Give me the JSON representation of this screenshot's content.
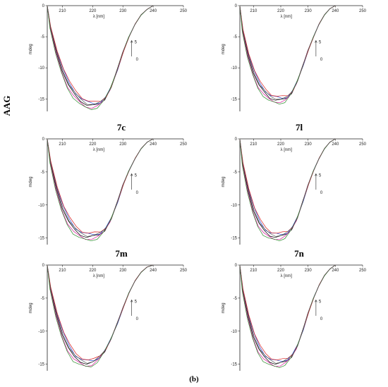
{
  "side_label": "AAG",
  "figure_label": "(b)",
  "series_colors": [
    "#000000",
    "#1f3fd1",
    "#d8199a",
    "#d92020",
    "#2a8a2a",
    "#555555"
  ],
  "chart_data": [
    {
      "type": "line",
      "panel_label": "7c",
      "xlabel": "λ [nm]",
      "ylabel": "mdeg",
      "xlim": [
        205,
        250
      ],
      "ylim": [
        -17,
        0
      ],
      "xticks": [
        210,
        220,
        230,
        240,
        250
      ],
      "yticks": [
        0,
        -5,
        -10,
        -15
      ],
      "annotation": {
        "top": "5",
        "bottom": "0"
      },
      "x": [
        205,
        206,
        208,
        210,
        212,
        214,
        216,
        218,
        220,
        222,
        224,
        226,
        228,
        230,
        232,
        234,
        236,
        238,
        240
      ],
      "y": [
        0,
        -3.5,
        -7.5,
        -10.5,
        -12.8,
        -14.3,
        -15.3,
        -15.9,
        -16.1,
        -15.9,
        -15.0,
        -13.2,
        -10.5,
        -7.5,
        -5.0,
        -3.0,
        -1.5,
        -0.6,
        0
      ]
    },
    {
      "type": "line",
      "panel_label": "7l",
      "xlabel": "λ [nm]",
      "ylabel": "mdeg",
      "xlim": [
        205,
        250
      ],
      "ylim": [
        -17,
        0
      ],
      "xticks": [
        210,
        220,
        230,
        240,
        250
      ],
      "yticks": [
        0,
        -5,
        -10,
        -15
      ],
      "annotation": {
        "top": "5",
        "bottom": "0"
      },
      "x": [
        205,
        206,
        208,
        210,
        212,
        214,
        216,
        218,
        220,
        222,
        224,
        226,
        228,
        230,
        232,
        234,
        236,
        238,
        240
      ],
      "y": [
        0,
        -4.0,
        -8.0,
        -10.8,
        -12.8,
        -14.0,
        -14.8,
        -15.1,
        -15.2,
        -15.0,
        -14.0,
        -12.2,
        -9.8,
        -7.2,
        -5.0,
        -3.0,
        -1.5,
        -0.5,
        0
      ]
    },
    {
      "type": "line",
      "panel_label": "7m",
      "xlabel": "λ [nm]",
      "ylabel": "mdeg",
      "xlim": [
        205,
        250
      ],
      "ylim": [
        -16,
        0
      ],
      "xticks": [
        210,
        220,
        230,
        240,
        250
      ],
      "yticks": [
        0,
        -5,
        -10,
        -15
      ],
      "annotation": {
        "top": "5",
        "bottom": "0"
      },
      "x": [
        205,
        206,
        208,
        210,
        212,
        214,
        216,
        218,
        220,
        222,
        224,
        226,
        228,
        230,
        232,
        234,
        236,
        238,
        240
      ],
      "y": [
        0,
        -3.5,
        -7.5,
        -10.5,
        -12.5,
        -13.8,
        -14.5,
        -14.8,
        -14.8,
        -14.6,
        -13.8,
        -12.2,
        -9.8,
        -7.0,
        -4.8,
        -3.0,
        -1.5,
        -0.5,
        0
      ]
    },
    {
      "type": "line",
      "panel_label": "7n",
      "xlabel": "λ [nm]",
      "ylabel": "mdeg",
      "xlim": [
        205,
        250
      ],
      "ylim": [
        -16,
        0
      ],
      "xticks": [
        210,
        220,
        230,
        240,
        250
      ],
      "yticks": [
        0,
        -5,
        -10,
        -15
      ],
      "annotation": {
        "top": "5",
        "bottom": "0"
      },
      "x": [
        205,
        206,
        208,
        210,
        212,
        214,
        216,
        218,
        220,
        222,
        224,
        226,
        228,
        230,
        232,
        234,
        236,
        238,
        240
      ],
      "y": [
        0,
        -3.8,
        -7.8,
        -10.8,
        -12.8,
        -14.0,
        -14.6,
        -14.8,
        -14.8,
        -14.5,
        -13.6,
        -12.0,
        -9.6,
        -7.0,
        -4.8,
        -3.0,
        -1.5,
        -0.5,
        0
      ]
    },
    {
      "type": "line",
      "panel_label": "",
      "xlabel": "λ [nm]",
      "ylabel": "mdeg",
      "xlim": [
        205,
        250
      ],
      "ylim": [
        -16,
        0
      ],
      "xticks": [
        210,
        220,
        230,
        240,
        250
      ],
      "yticks": [
        0,
        -5,
        -10,
        -15
      ],
      "annotation": {
        "top": "5",
        "bottom": "0"
      },
      "x": [
        205,
        206,
        208,
        210,
        212,
        214,
        216,
        218,
        220,
        222,
        224,
        226,
        228,
        230,
        232,
        234,
        236,
        238,
        240
      ],
      "y": [
        0,
        -3.5,
        -7.5,
        -10.5,
        -12.6,
        -14.0,
        -14.6,
        -14.9,
        -14.8,
        -14.2,
        -13.0,
        -11.2,
        -9.0,
        -6.5,
        -4.2,
        -2.4,
        -1.1,
        -0.3,
        0
      ]
    },
    {
      "type": "line",
      "panel_label": "",
      "xlabel": "λ [nm]",
      "ylabel": "mdeg",
      "xlim": [
        205,
        250
      ],
      "ylim": [
        -16,
        0
      ],
      "xticks": [
        210,
        220,
        230,
        240,
        250
      ],
      "yticks": [
        0,
        -5,
        -10,
        -15
      ],
      "annotation": {
        "top": "5",
        "bottom": "0"
      },
      "x": [
        205,
        206,
        208,
        210,
        212,
        214,
        216,
        218,
        220,
        222,
        224,
        226,
        228,
        230,
        232,
        234,
        236,
        238,
        240
      ],
      "y": [
        0,
        -3.8,
        -7.8,
        -10.8,
        -12.8,
        -14.0,
        -14.6,
        -14.9,
        -14.9,
        -14.6,
        -13.8,
        -12.3,
        -10.0,
        -7.3,
        -5.0,
        -3.1,
        -1.6,
        -0.6,
        0
      ]
    }
  ]
}
